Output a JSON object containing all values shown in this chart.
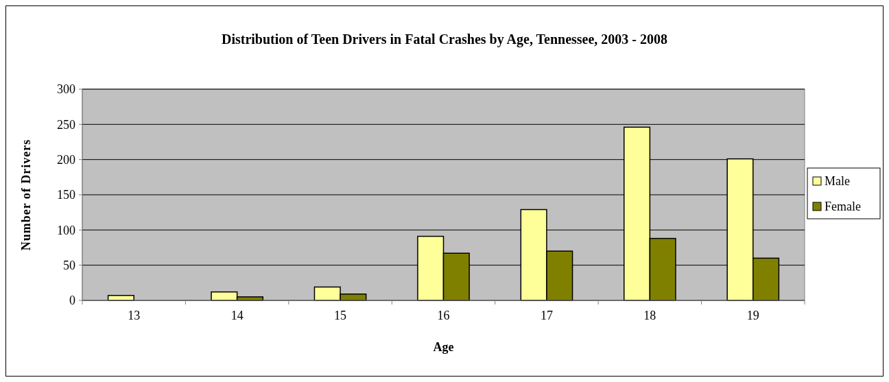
{
  "chart_data": {
    "type": "bar",
    "title": "Distribution of Teen Drivers in Fatal Crashes by Age, Tennessee, 2003 - 2008",
    "xlabel": "Age",
    "ylabel": "Number of Drivers",
    "categories": [
      "13",
      "14",
      "15",
      "16",
      "17",
      "18",
      "19"
    ],
    "series": [
      {
        "name": "Male",
        "color": "#ffff99",
        "values": [
          7,
          12,
          19,
          91,
          129,
          246,
          201
        ]
      },
      {
        "name": "Female",
        "color": "#808000",
        "values": [
          0,
          5,
          9,
          67,
          70,
          88,
          60
        ]
      }
    ],
    "ylim": [
      0,
      300
    ],
    "yticks": [
      0,
      50,
      100,
      150,
      200,
      250,
      300
    ],
    "grid": "y",
    "legend": "right"
  }
}
